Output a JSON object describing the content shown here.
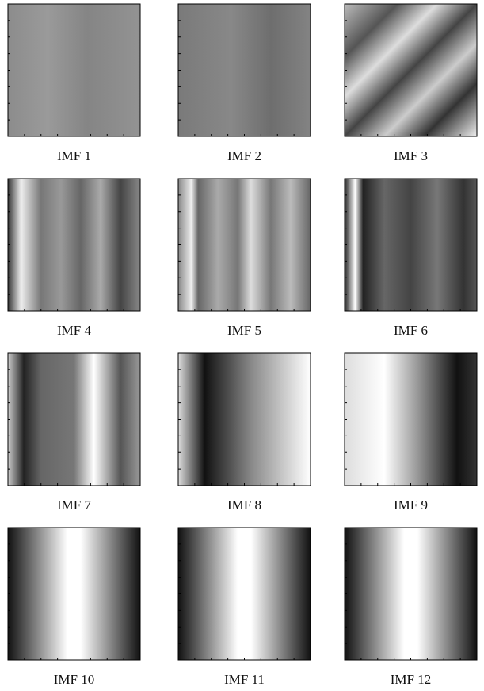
{
  "panels": [
    {
      "label": "IMF 1"
    },
    {
      "label": "IMF 2"
    },
    {
      "label": "IMF 3"
    },
    {
      "label": "IMF 4"
    },
    {
      "label": "IMF 5"
    },
    {
      "label": "IMF 6"
    },
    {
      "label": "IMF 7"
    },
    {
      "label": "IMF 8"
    },
    {
      "label": "IMF 9"
    },
    {
      "label": "IMF 10"
    },
    {
      "label": "IMF 11"
    },
    {
      "label": "IMF 12"
    }
  ]
}
